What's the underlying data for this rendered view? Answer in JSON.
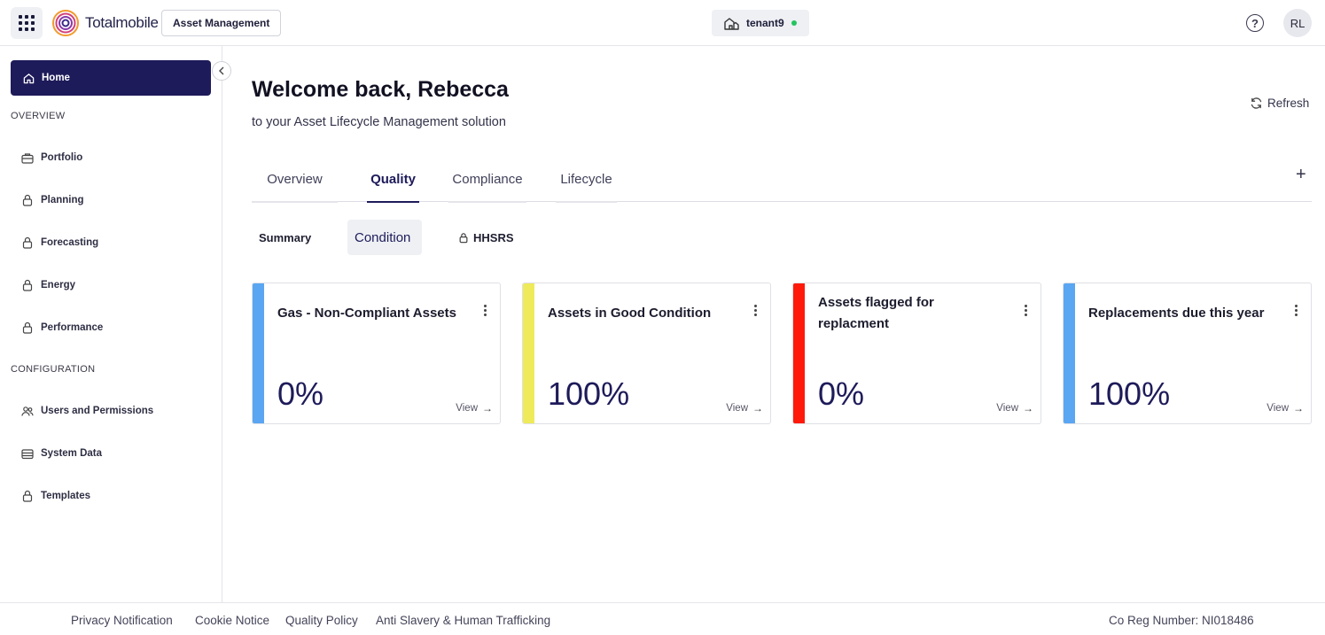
{
  "header": {
    "brand": "Totalmobile",
    "module_label": "Asset Management",
    "tenant": "tenant9",
    "tenant_status_color": "#22c55e",
    "help_icon": "help-circle-icon",
    "avatar_initials": "RL"
  },
  "sidebar": {
    "home_label": "Home",
    "sections": [
      {
        "heading": "OVERVIEW",
        "items": [
          {
            "label": "Portfolio",
            "icon": "briefcase-icon"
          },
          {
            "label": "Planning",
            "icon": "lock-icon"
          },
          {
            "label": "Forecasting",
            "icon": "lock-icon"
          },
          {
            "label": "Energy",
            "icon": "lock-icon"
          },
          {
            "label": "Performance",
            "icon": "lock-icon"
          }
        ]
      },
      {
        "heading": "CONFIGURATION",
        "items": [
          {
            "label": "Users and Permissions",
            "icon": "users-icon"
          },
          {
            "label": "System Data",
            "icon": "database-icon"
          },
          {
            "label": "Templates",
            "icon": "lock-icon"
          }
        ]
      }
    ]
  },
  "main": {
    "welcome": "Welcome back, Rebecca",
    "subtitle": "to your Asset Lifecycle Management solution",
    "refresh_label": "Refresh",
    "tabs": [
      {
        "label": "Overview",
        "active": false
      },
      {
        "label": "Quality",
        "active": true
      },
      {
        "label": "Compliance",
        "active": false
      },
      {
        "label": "Lifecycle",
        "active": false
      }
    ],
    "subtabs": [
      {
        "label": "Summary",
        "active": false
      },
      {
        "label": "Condition",
        "active": true
      },
      {
        "label": "HHSRS",
        "active": false,
        "locked": true
      }
    ],
    "cards": [
      {
        "title": "Gas - Non-Compliant Assets",
        "value": "0%",
        "accent": "#5aa6f2",
        "view_label": "View"
      },
      {
        "title": "Assets in Good Condition",
        "value": "100%",
        "accent": "#eeea5a",
        "view_label": "View"
      },
      {
        "title": "Assets flagged for replacment",
        "value": "0%",
        "accent": "#ff1a0a",
        "view_label": "View"
      },
      {
        "title": "Replacements due this year",
        "value": "100%",
        "accent": "#5aa6f2",
        "view_label": "View"
      }
    ]
  },
  "footer": {
    "links": [
      "Privacy Notification",
      "Cookie Notice",
      "Quality Policy",
      "Anti Slavery & Human Trafficking"
    ],
    "co_reg": "Co Reg Number: NI018486"
  },
  "colors": {
    "brand_navy": "#1e1b5a"
  }
}
